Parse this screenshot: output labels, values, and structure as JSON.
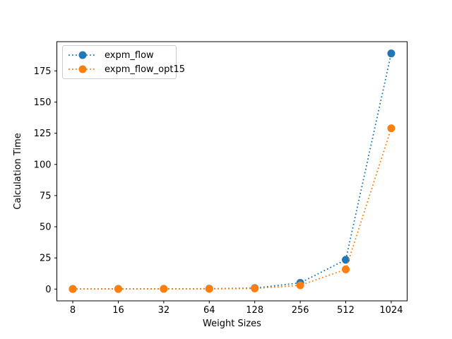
{
  "chart_data": {
    "type": "line",
    "xlabel": "Weight Sizes",
    "ylabel": "Calculation Time",
    "categories": [
      "8",
      "16",
      "32",
      "64",
      "128",
      "256",
      "512",
      "1024"
    ],
    "series": [
      {
        "name": "expm_flow",
        "color": "#1f77b4",
        "values": [
          0.1,
          0.15,
          0.2,
          0.3,
          0.8,
          5.0,
          23.5,
          189.0
        ]
      },
      {
        "name": "expm_flow_opt15",
        "color": "#ff7f0e",
        "values": [
          0.05,
          0.1,
          0.15,
          0.2,
          0.5,
          3.0,
          15.8,
          129.0
        ]
      }
    ],
    "yticks": [
      0,
      25,
      50,
      75,
      100,
      125,
      150,
      175
    ],
    "ylim": [
      -9.45,
      198.45
    ],
    "line_style": "dotted",
    "marker": "circle",
    "marker_size_px": 11,
    "legend_position": "upper-left",
    "grid": false,
    "background": "#ffffff",
    "spine_color": "#000000"
  }
}
